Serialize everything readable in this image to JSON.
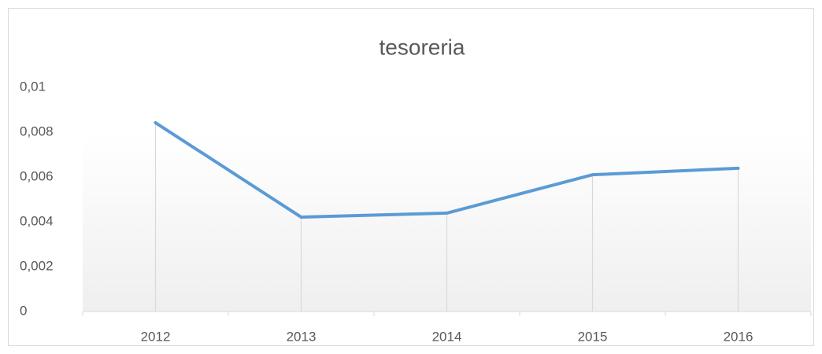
{
  "chart_data": {
    "type": "line",
    "title": "tesoreria",
    "categories": [
      "2012",
      "2013",
      "2014",
      "2015",
      "2016"
    ],
    "values": [
      0.00842,
      0.00421,
      0.00439,
      0.0061,
      0.00639
    ],
    "color": "#5b9bd5",
    "ylim": [
      0,
      0.01
    ],
    "yticks": [
      0,
      {
        "value": 0.002,
        "label": "0,002"
      },
      {
        "value": 0.004,
        "label": "0,004"
      },
      {
        "value": 0.006,
        "label": "0,006"
      },
      {
        "value": 0.008,
        "label": "0,008"
      },
      {
        "value": 0.01,
        "label": "0,01"
      }
    ],
    "drop_lines": true
  }
}
